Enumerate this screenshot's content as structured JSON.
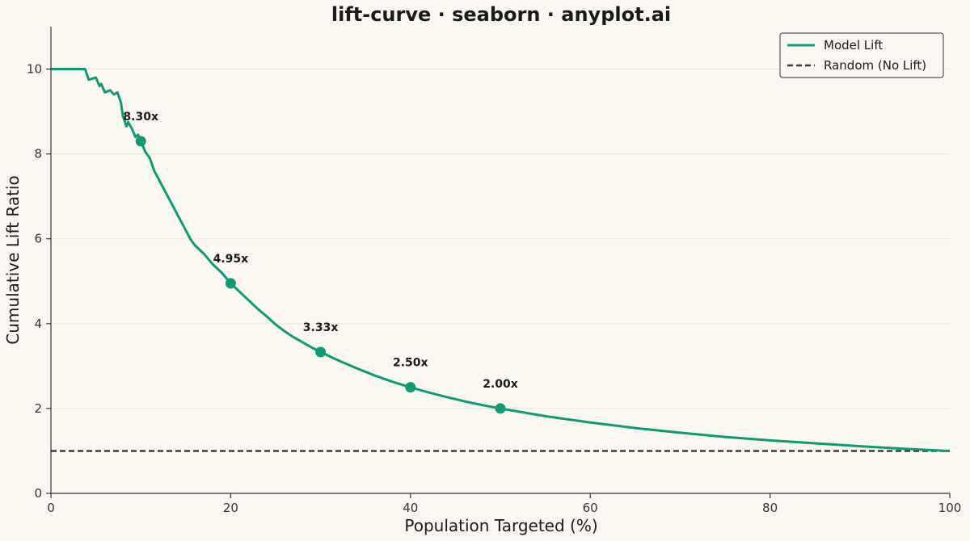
{
  "chart_data": {
    "type": "line",
    "title": "lift-curve · seaborn · anyplot.ai",
    "xlabel": "Population Targeted (%)",
    "ylabel": "Cumulative Lift Ratio",
    "xlim": [
      0,
      100
    ],
    "ylim": [
      0,
      11
    ],
    "x_ticks": [
      0,
      20,
      40,
      60,
      80,
      100
    ],
    "y_ticks": [
      0,
      2,
      4,
      6,
      8,
      10
    ],
    "grid": "horizontal",
    "legend_position": "top-right",
    "colors": {
      "model": "#109a74",
      "random": "#3a3a3a",
      "background": "#faf8f1"
    },
    "series": [
      {
        "name": "Model Lift",
        "style": "solid",
        "x": [
          0,
          1,
          2,
          3,
          3.8,
          4.2,
          5,
          5.4,
          5.6,
          6,
          6.6,
          7,
          7.4,
          7.8,
          8,
          8.4,
          8.6,
          9,
          9.4,
          9.7,
          10,
          10.5,
          11,
          11.5,
          12,
          12.5,
          13,
          13.5,
          14,
          14.5,
          15,
          15.5,
          16,
          17,
          18,
          19,
          20,
          21,
          22,
          23,
          24,
          25,
          26,
          27,
          28,
          29,
          30,
          32,
          34,
          36,
          38,
          40,
          42,
          44,
          46,
          48,
          50,
          55,
          60,
          65,
          70,
          75,
          80,
          85,
          90,
          95,
          100
        ],
        "values": [
          10,
          10,
          10,
          10,
          10,
          9.75,
          9.8,
          9.6,
          9.65,
          9.45,
          9.5,
          9.4,
          9.45,
          9.2,
          8.9,
          8.65,
          8.75,
          8.6,
          8.4,
          8.45,
          8.3,
          8.05,
          7.9,
          7.6,
          7.4,
          7.2,
          7.0,
          6.8,
          6.6,
          6.4,
          6.2,
          6.0,
          5.85,
          5.65,
          5.4,
          5.2,
          4.95,
          4.75,
          4.55,
          4.35,
          4.17,
          3.98,
          3.82,
          3.68,
          3.56,
          3.44,
          3.33,
          3.13,
          2.95,
          2.78,
          2.63,
          2.5,
          2.38,
          2.27,
          2.17,
          2.08,
          2.0,
          1.82,
          1.67,
          1.54,
          1.43,
          1.33,
          1.25,
          1.18,
          1.11,
          1.05,
          1.0
        ]
      },
      {
        "name": "Random (No Lift)",
        "style": "dashed",
        "x": [
          0,
          100
        ],
        "values": [
          1,
          1
        ]
      }
    ],
    "annotations": [
      {
        "x": 10,
        "y": 8.3,
        "label": "8.30x"
      },
      {
        "x": 20,
        "y": 4.95,
        "label": "4.95x"
      },
      {
        "x": 30,
        "y": 3.33,
        "label": "3.33x"
      },
      {
        "x": 40,
        "y": 2.5,
        "label": "2.50x"
      },
      {
        "x": 50,
        "y": 2.0,
        "label": "2.00x"
      }
    ]
  }
}
